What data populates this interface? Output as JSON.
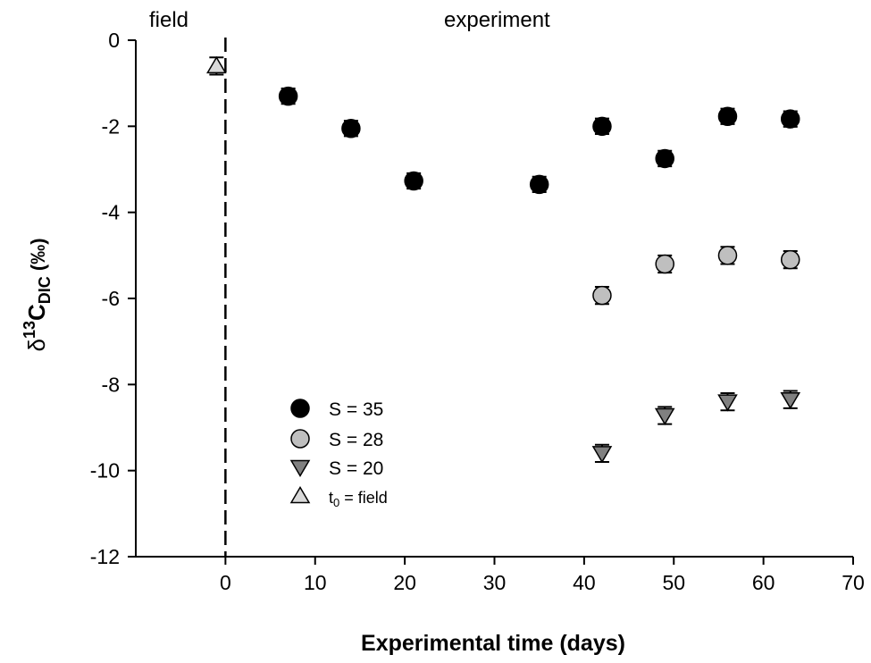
{
  "chart_data": {
    "type": "scatter",
    "xlabel": "Experimental time (days)",
    "ylabel": {
      "delta": "δ",
      "sup": "13",
      "main": "C",
      "sub": "DIC",
      "unit": " (‰)"
    },
    "xlim": [
      -10,
      70
    ],
    "ylim": [
      -12,
      0
    ],
    "xticks": [
      0,
      10,
      20,
      30,
      40,
      50,
      60,
      70
    ],
    "yticks": [
      0,
      -2,
      -4,
      -6,
      -8,
      -10,
      -12
    ],
    "grid": false,
    "legend_position": "lower-left inside plot",
    "region_labels": {
      "left": "field",
      "right": "experiment"
    },
    "divider_x": 0,
    "series": [
      {
        "name": "S = 35",
        "marker": "circle",
        "color": "#000000",
        "x": [
          7,
          14,
          21,
          35,
          42,
          49,
          56,
          63
        ],
        "y": [
          -1.3,
          -2.05,
          -3.27,
          -3.35,
          -2.0,
          -2.75,
          -1.77,
          -1.83
        ],
        "err": [
          0.18,
          0.18,
          0.18,
          0.18,
          0.18,
          0.18,
          0.18,
          0.18
        ]
      },
      {
        "name": "S = 28",
        "marker": "circle",
        "color": "#bfbfbf",
        "x": [
          42,
          49,
          56,
          63
        ],
        "y": [
          -5.93,
          -5.2,
          -5.0,
          -5.1
        ],
        "err": [
          0.2,
          0.2,
          0.2,
          0.2
        ]
      },
      {
        "name": "S = 20",
        "marker": "triangle-down",
        "color": "#808080",
        "x": [
          42,
          49,
          56,
          63
        ],
        "y": [
          -9.6,
          -8.72,
          -8.4,
          -8.35
        ],
        "err": [
          0.2,
          0.2,
          0.2,
          0.2
        ]
      },
      {
        "name": "t0 = field",
        "legend_main": "t",
        "legend_sub": "0",
        "legend_rest": " = field",
        "marker": "triangle-up",
        "color": "#d9d9d9",
        "x": [
          -1
        ],
        "y": [
          -0.6
        ],
        "err": [
          0.2
        ]
      }
    ]
  }
}
